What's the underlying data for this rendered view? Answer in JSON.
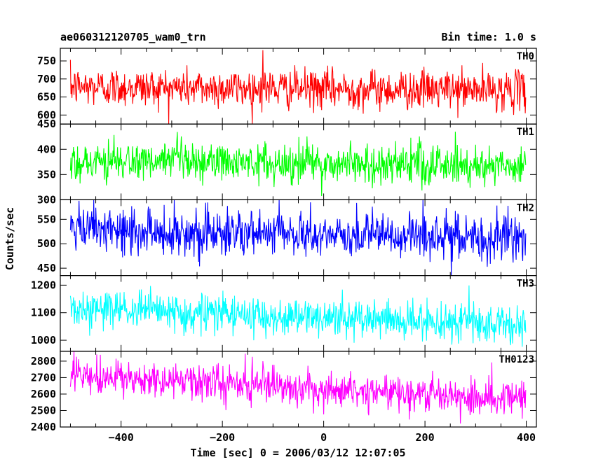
{
  "header": {
    "title": "ae060312120705_wam0_trn",
    "bin_time": "Bin time: 1.0 s"
  },
  "chart_data": {
    "type": "line",
    "xlabel": "Time [sec] 0 = 2006/03/12 12:07:05",
    "ylabel": "Counts/sec",
    "xlim": [
      -520,
      420
    ],
    "xticks": [
      -400,
      -200,
      0,
      200,
      400
    ],
    "x_start": -500,
    "x_end": 399,
    "x_step": 1,
    "panels": [
      {
        "name": "TH0",
        "color": "#ff0000",
        "ylim": [
          575,
          785
        ],
        "yticks": [
          600,
          650,
          700,
          750
        ],
        "mean_start": 678,
        "mean_end": 668,
        "noise_sd": 27,
        "spikes": [
          {
            "x": -120,
            "y": 780
          }
        ]
      },
      {
        "name": "TH1",
        "color": "#00ff00",
        "ylim": [
          300,
          450
        ],
        "yticks": [
          300,
          350,
          400,
          450
        ],
        "mean_start": 376,
        "mean_end": 368,
        "noise_sd": 20,
        "spikes": []
      },
      {
        "name": "TH2",
        "color": "#0000ff",
        "ylim": [
          435,
          590
        ],
        "yticks": [
          450,
          500,
          550
        ],
        "mean_start": 528,
        "mean_end": 510,
        "noise_sd": 24,
        "spikes": []
      },
      {
        "name": "TH3",
        "color": "#00ffff",
        "ylim": [
          960,
          1235
        ],
        "yticks": [
          1000,
          1100,
          1200
        ],
        "mean_start": 1115,
        "mean_end": 1055,
        "noise_sd": 35,
        "spikes": []
      },
      {
        "name": "TH0123",
        "color": "#ff00ff",
        "ylim": [
          2400,
          2860
        ],
        "yticks": [
          2400,
          2500,
          2600,
          2700,
          2800
        ],
        "mean_start": 2705,
        "mean_end": 2575,
        "noise_sd": 55,
        "spikes": []
      }
    ]
  }
}
